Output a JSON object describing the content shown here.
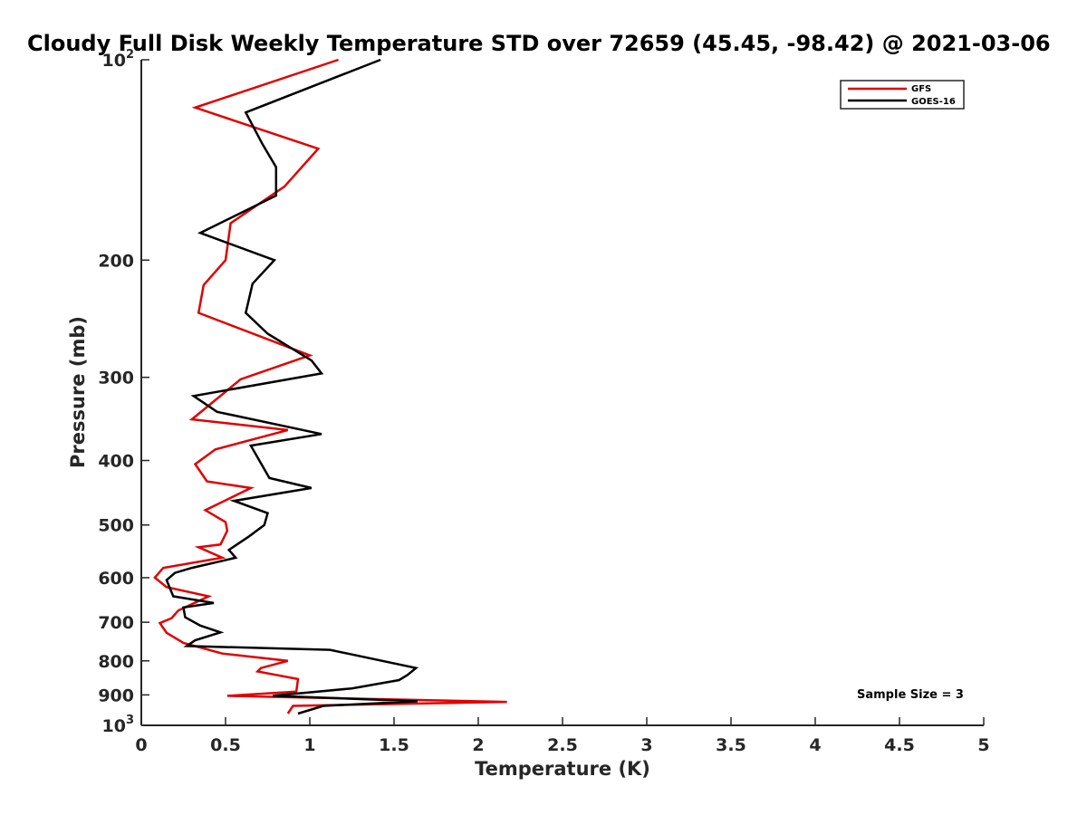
{
  "chart_data": {
    "type": "line",
    "title": "Cloudy Full Disk Weekly Temperature STD over 72659 (45.45, -98.42) @ 2021-03-06",
    "xlabel": "Temperature (K)",
    "ylabel": "Pressure (mb)",
    "xlim": [
      0,
      5
    ],
    "ylim": [
      100,
      1000
    ],
    "y_scale": "log",
    "y_reversed": true,
    "grid": false,
    "legend_position": "top-right",
    "x_ticks": [
      0,
      0.5,
      1,
      1.5,
      2,
      2.5,
      3,
      3.5,
      4,
      4.5,
      5
    ],
    "x_tick_labels": [
      "0",
      "0.5",
      "1",
      "1.5",
      "2",
      "2.5",
      "3",
      "3.5",
      "4",
      "4.5",
      "5"
    ],
    "y_ticks": [
      100,
      200,
      300,
      400,
      500,
      600,
      700,
      800,
      900,
      1000
    ],
    "y_tick_labels": [
      {
        "base": "10",
        "exp": "2"
      },
      {
        "base": "200",
        "exp": ""
      },
      {
        "base": "300",
        "exp": ""
      },
      {
        "base": "400",
        "exp": ""
      },
      {
        "base": "500",
        "exp": ""
      },
      {
        "base": "600",
        "exp": ""
      },
      {
        "base": "700",
        "exp": ""
      },
      {
        "base": "800",
        "exp": ""
      },
      {
        "base": "900",
        "exp": ""
      },
      {
        "base": "10",
        "exp": "3"
      }
    ],
    "annotation": "Sample Size = 3",
    "series": [
      {
        "name": "GFS",
        "color": "#e00000",
        "points": [
          [
            1.17,
            100
          ],
          [
            0.32,
            118
          ],
          [
            1.05,
            136
          ],
          [
            0.85,
            155
          ],
          [
            0.53,
            176
          ],
          [
            0.5,
            200
          ],
          [
            0.37,
            218
          ],
          [
            0.34,
            240
          ],
          [
            1.0,
            278
          ],
          [
            0.59,
            302
          ],
          [
            0.3,
            347
          ],
          [
            0.87,
            360
          ],
          [
            0.44,
            385
          ],
          [
            0.32,
            405
          ],
          [
            0.39,
            430
          ],
          [
            0.65,
            440
          ],
          [
            0.38,
            475
          ],
          [
            0.5,
            495
          ],
          [
            0.51,
            510
          ],
          [
            0.47,
            535
          ],
          [
            0.34,
            540
          ],
          [
            0.48,
            560
          ],
          [
            0.13,
            580
          ],
          [
            0.08,
            600
          ],
          [
            0.15,
            620
          ],
          [
            0.4,
            640
          ],
          [
            0.22,
            672
          ],
          [
            0.18,
            690
          ],
          [
            0.11,
            702
          ],
          [
            0.15,
            726
          ],
          [
            0.25,
            752
          ],
          [
            0.48,
            780
          ],
          [
            0.87,
            800
          ],
          [
            0.71,
            820
          ],
          [
            0.69,
            830
          ],
          [
            0.93,
            852
          ],
          [
            0.92,
            890
          ],
          [
            0.51,
            903
          ],
          [
            2.17,
            922
          ],
          [
            0.9,
            935
          ],
          [
            0.87,
            960
          ]
        ]
      },
      {
        "name": "GOES-16",
        "color": "#000000",
        "points": [
          [
            1.42,
            100
          ],
          [
            0.62,
            120
          ],
          [
            0.72,
            134
          ],
          [
            0.8,
            145
          ],
          [
            0.8,
            160
          ],
          [
            0.35,
            182
          ],
          [
            0.79,
            200
          ],
          [
            0.66,
            217
          ],
          [
            0.62,
            240
          ],
          [
            0.75,
            258
          ],
          [
            1.01,
            283
          ],
          [
            1.07,
            296
          ],
          [
            0.31,
            320
          ],
          [
            0.45,
            338
          ],
          [
            1.07,
            365
          ],
          [
            0.65,
            380
          ],
          [
            0.76,
            425
          ],
          [
            1.01,
            440
          ],
          [
            0.55,
            460
          ],
          [
            0.75,
            480
          ],
          [
            0.73,
            500
          ],
          [
            0.64,
            520
          ],
          [
            0.52,
            545
          ],
          [
            0.56,
            560
          ],
          [
            0.3,
            580
          ],
          [
            0.2,
            590
          ],
          [
            0.15,
            605
          ],
          [
            0.19,
            640
          ],
          [
            0.43,
            655
          ],
          [
            0.25,
            665
          ],
          [
            0.26,
            688
          ],
          [
            0.35,
            708
          ],
          [
            0.47,
            725
          ],
          [
            0.32,
            745
          ],
          [
            0.27,
            760
          ],
          [
            1.12,
            770
          ],
          [
            1.63,
            820
          ],
          [
            1.58,
            840
          ],
          [
            1.53,
            855
          ],
          [
            1.25,
            880
          ],
          [
            0.78,
            903
          ],
          [
            1.64,
            920
          ],
          [
            1.08,
            935
          ],
          [
            0.93,
            960
          ]
        ]
      }
    ]
  }
}
